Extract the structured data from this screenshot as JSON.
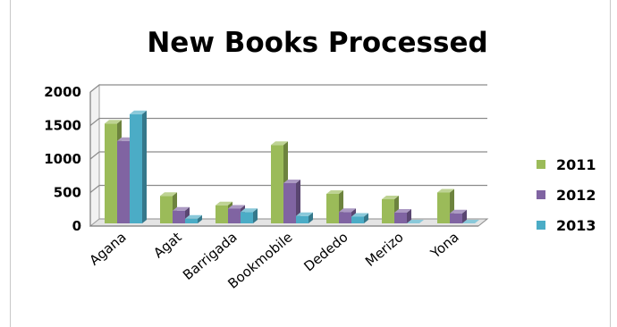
{
  "chart_data": {
    "type": "bar",
    "title": "New Books Processed",
    "categories": [
      "Agana",
      "Agat",
      "Barrigada",
      "Bookmobile",
      "Dededo",
      "Merizo",
      "Yona"
    ],
    "series": [
      {
        "name": "2011",
        "values": [
          1530,
          450,
          310,
          1210,
          480,
          400,
          500
        ]
      },
      {
        "name": "2012",
        "values": [
          1270,
          230,
          260,
          640,
          210,
          200,
          190
        ]
      },
      {
        "name": "2013",
        "values": [
          1670,
          110,
          210,
          150,
          140,
          40,
          40
        ]
      }
    ],
    "y_ticks": [
      "0",
      "500",
      "1000",
      "1500",
      "2000"
    ],
    "ylim": [
      0,
      2000
    ],
    "grid": true,
    "legend_position": "right",
    "colors": {
      "2011": "#9bbb59",
      "2012": "#8064a2",
      "2013": "#4bacc6"
    }
  }
}
